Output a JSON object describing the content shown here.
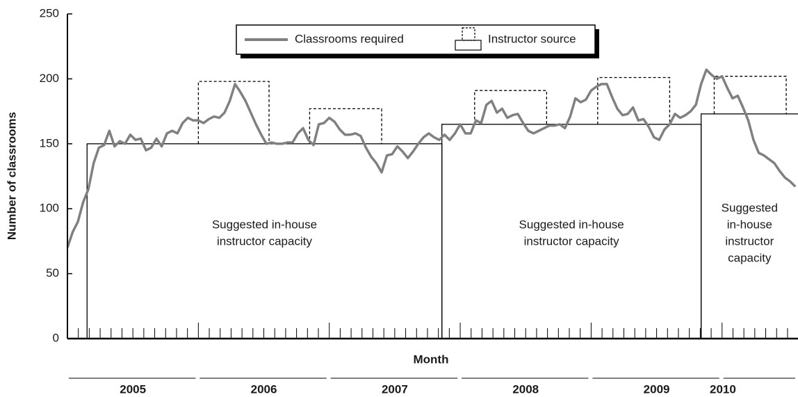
{
  "chart_data": {
    "type": "line",
    "ylabel": "Number of classrooms",
    "xlabel": "Month",
    "ylim": [
      0,
      250
    ],
    "yticks": [
      0,
      50,
      100,
      150,
      200,
      250
    ],
    "xlim": [
      2005,
      2010.58
    ],
    "xticks": [
      2005,
      2006,
      2007,
      2008,
      2009,
      2010
    ],
    "year_labels": [
      "2005",
      "2006",
      "2007",
      "2008",
      "2009",
      "2010"
    ],
    "series": [
      {
        "name": "Classrooms required",
        "color": "#808080",
        "x": [
          2005.0,
          2005.04,
          2005.08,
          2005.12,
          2005.16,
          2005.2,
          2005.24,
          2005.28,
          2005.32,
          2005.36,
          2005.4,
          2005.44,
          2005.48,
          2005.52,
          2005.56,
          2005.6,
          2005.64,
          2005.68,
          2005.72,
          2005.76,
          2005.8,
          2005.84,
          2005.88,
          2005.92,
          2005.96,
          2006.0,
          2006.04,
          2006.08,
          2006.12,
          2006.16,
          2006.2,
          2006.24,
          2006.28,
          2006.32,
          2006.36,
          2006.4,
          2006.44,
          2006.48,
          2006.52,
          2006.56,
          2006.6,
          2006.64,
          2006.68,
          2006.72,
          2006.76,
          2006.8,
          2006.84,
          2006.88,
          2006.92,
          2006.96,
          2007.0,
          2007.04,
          2007.08,
          2007.12,
          2007.16,
          2007.2,
          2007.24,
          2007.28,
          2007.32,
          2007.36,
          2007.4,
          2007.44,
          2007.48,
          2007.52,
          2007.56,
          2007.6,
          2007.64,
          2007.68,
          2007.72,
          2007.76,
          2007.8,
          2007.84,
          2007.88,
          2007.92,
          2007.96,
          2008.0,
          2008.04,
          2008.08,
          2008.12,
          2008.16,
          2008.2,
          2008.24,
          2008.28,
          2008.32,
          2008.36,
          2008.4,
          2008.44,
          2008.48,
          2008.52,
          2008.56,
          2008.6,
          2008.64,
          2008.68,
          2008.72,
          2008.76,
          2008.8,
          2008.84,
          2008.88,
          2008.92,
          2008.96,
          2009.0,
          2009.04,
          2009.08,
          2009.12,
          2009.16,
          2009.2,
          2009.24,
          2009.28,
          2009.32,
          2009.36,
          2009.4,
          2009.44,
          2009.48,
          2009.52,
          2009.56,
          2009.6,
          2009.64,
          2009.68,
          2009.72,
          2009.76,
          2009.8,
          2009.84,
          2009.88,
          2009.92,
          2009.96,
          2010.0,
          2010.04,
          2010.08,
          2010.12,
          2010.16,
          2010.2,
          2010.24,
          2010.28,
          2010.32,
          2010.36,
          2010.4,
          2010.44,
          2010.48,
          2010.52,
          2010.56
        ],
        "values": [
          70,
          82,
          90,
          105,
          115,
          135,
          147,
          149,
          160,
          148,
          152,
          150,
          157,
          153,
          154,
          145,
          147,
          154,
          148,
          158,
          160,
          158,
          166,
          170,
          168,
          168,
          166,
          169,
          171,
          170,
          174,
          183,
          196,
          190,
          183,
          174,
          165,
          157,
          150,
          151,
          150,
          150,
          151,
          151,
          158,
          162,
          153,
          149,
          165,
          166,
          170,
          167,
          161,
          157,
          157,
          158,
          156,
          147,
          140,
          135,
          128,
          141,
          142,
          148,
          144,
          139,
          144,
          150,
          155,
          158,
          155,
          153,
          157,
          153,
          158,
          165,
          158,
          158,
          168,
          166,
          180,
          183,
          174,
          177,
          170,
          172,
          173,
          166,
          160,
          158,
          160,
          162,
          164,
          164,
          165,
          162,
          171,
          185,
          182,
          184,
          191,
          194,
          196,
          196,
          186,
          177,
          172,
          173,
          178,
          168,
          169,
          163,
          155,
          153,
          161,
          165,
          173,
          170,
          172,
          175,
          180,
          196,
          207,
          203,
          200,
          202,
          193,
          185,
          187,
          178,
          168,
          153,
          143,
          141,
          138,
          135,
          129,
          124,
          121,
          117
        ]
      }
    ],
    "capacity": [
      {
        "start": 2005.15,
        "end": 2007.86,
        "level": 150,
        "label": [
          "Suggested in-house",
          "instructor capacity"
        ]
      },
      {
        "start": 2007.86,
        "end": 2009.84,
        "level": 165,
        "label": [
          "Suggested in-house",
          "instructor capacity"
        ]
      },
      {
        "start": 2009.84,
        "end": 2010.6,
        "level": 173,
        "label": [
          "Suggested",
          "in-house",
          "instructor",
          "capacity"
        ]
      }
    ],
    "instructor_source": {
      "name": "Instructor source",
      "blocks": [
        {
          "start": 2006.0,
          "end": 2006.54,
          "base": 150,
          "top": 198
        },
        {
          "start": 2006.85,
          "end": 2007.4,
          "base": 150,
          "top": 177
        },
        {
          "start": 2008.11,
          "end": 2008.66,
          "base": 165,
          "top": 191
        },
        {
          "start": 2009.05,
          "end": 2009.6,
          "base": 165,
          "top": 201
        },
        {
          "start": 2009.94,
          "end": 2010.49,
          "base": 173,
          "top": 202
        }
      ]
    }
  }
}
